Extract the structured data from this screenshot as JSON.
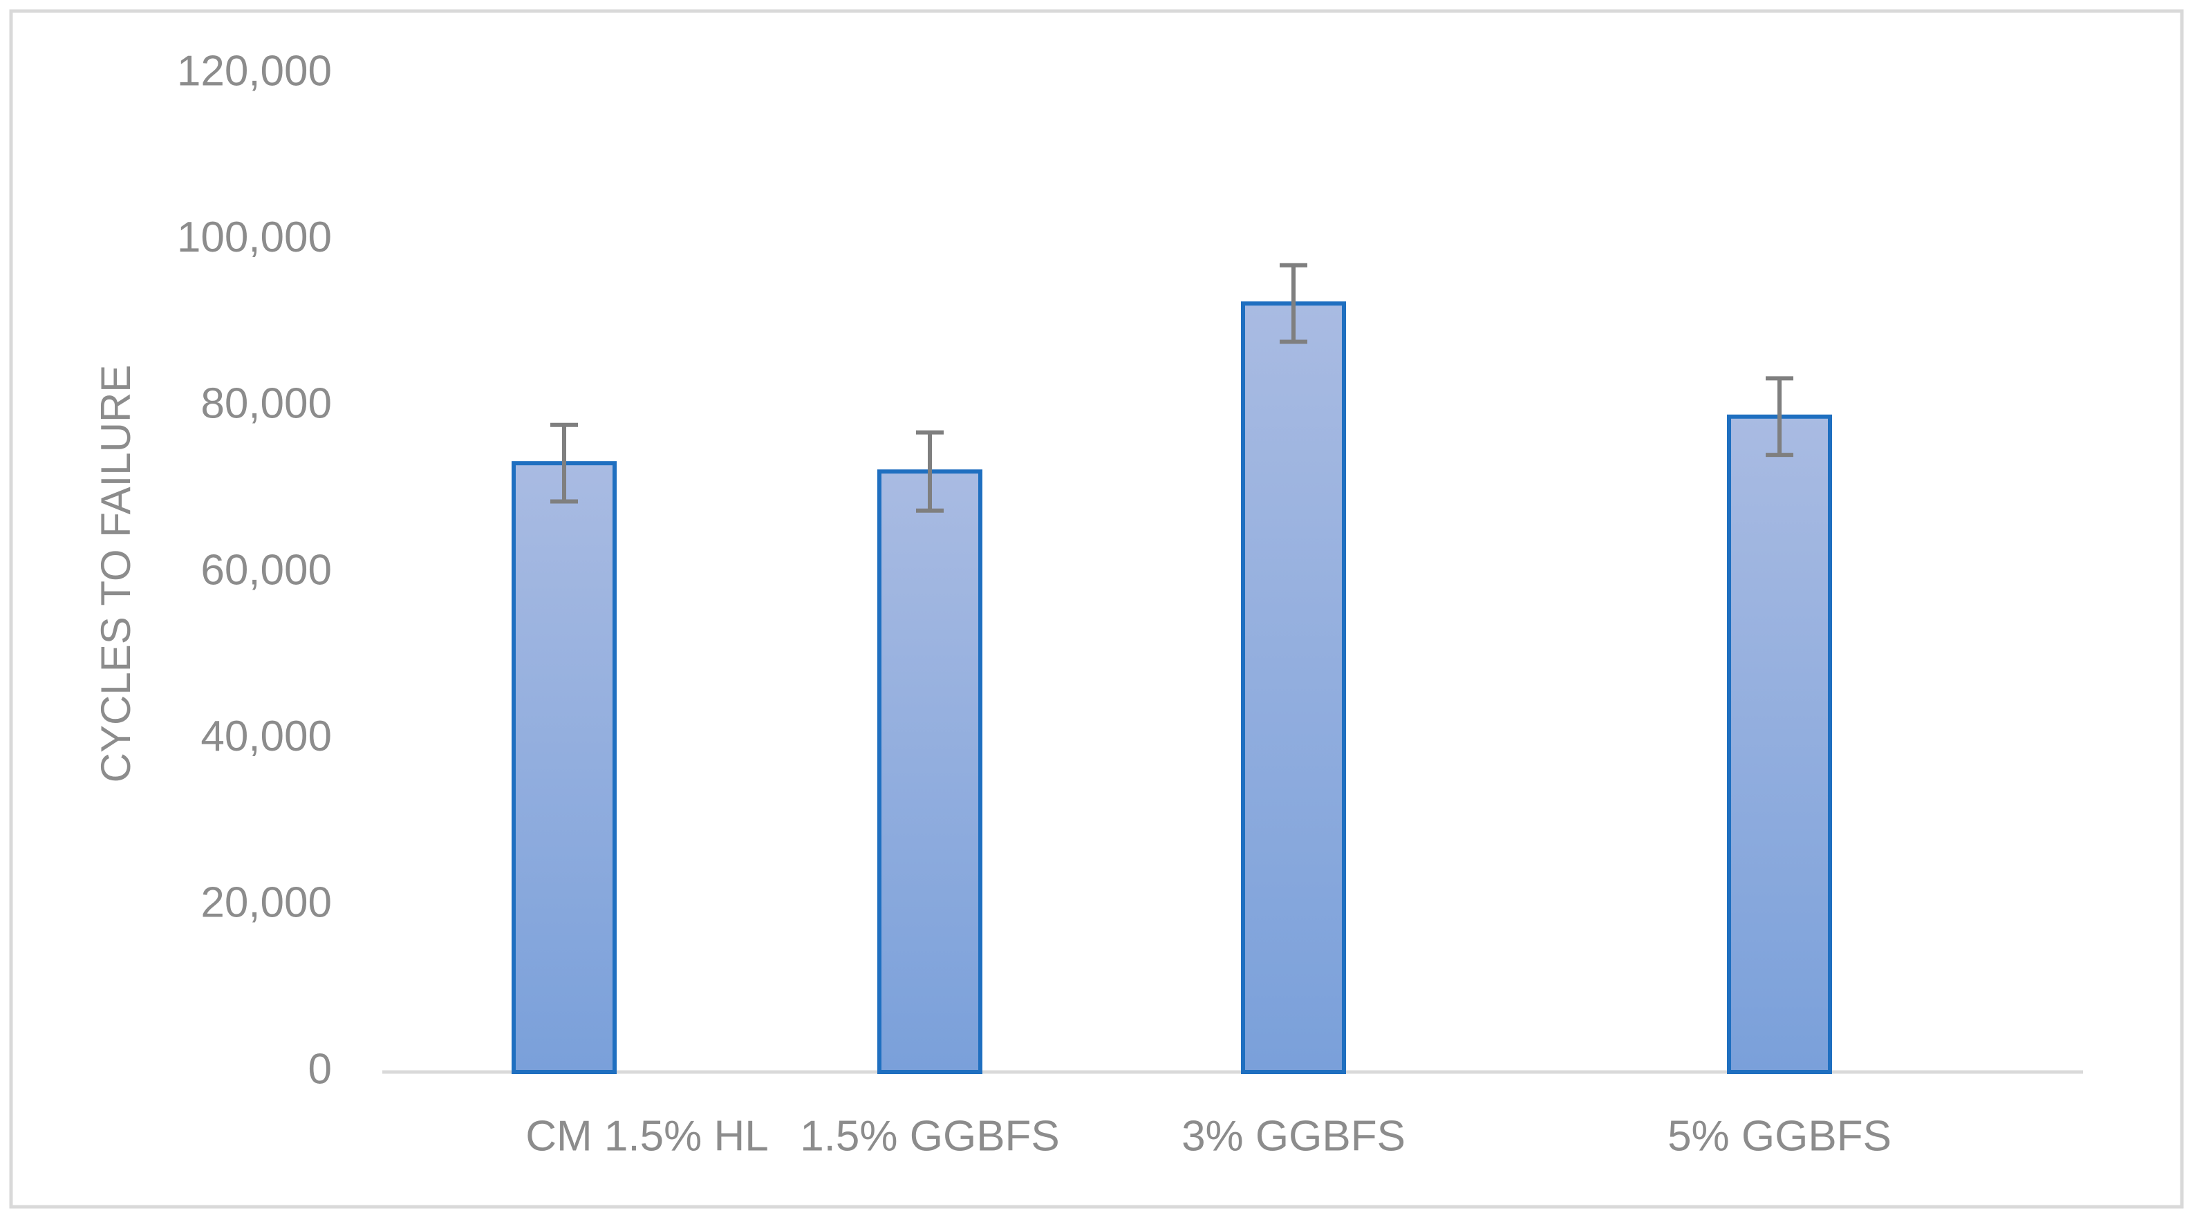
{
  "chart_data": {
    "type": "bar",
    "y_axis_label": "CYCLES TO FAILURE",
    "categories": [
      "CM 1.5% HL",
      "1.5% GGBFS",
      "3% GGBFS",
      "5% GGBFS"
    ],
    "values": [
      73200,
      72200,
      92400,
      78800
    ],
    "errors": [
      4600,
      4700,
      4600,
      4600
    ],
    "color": "#8eabdc",
    "edge_color": "#1f6fc0",
    "error_color": "#7f7f7f",
    "ylim": [
      0,
      120000
    ],
    "yticks": [
      0,
      {
        "value": 20000,
        "label": "20,000"
      },
      {
        "value": 40000,
        "label": "40,000"
      },
      {
        "value": 60000,
        "label": "60,000"
      },
      {
        "value": 80000,
        "label": "80,000"
      },
      {
        "value": 100000,
        "label": "100,000"
      },
      {
        "value": 120000,
        "label": "120,000"
      }
    ],
    "grid": false
  }
}
